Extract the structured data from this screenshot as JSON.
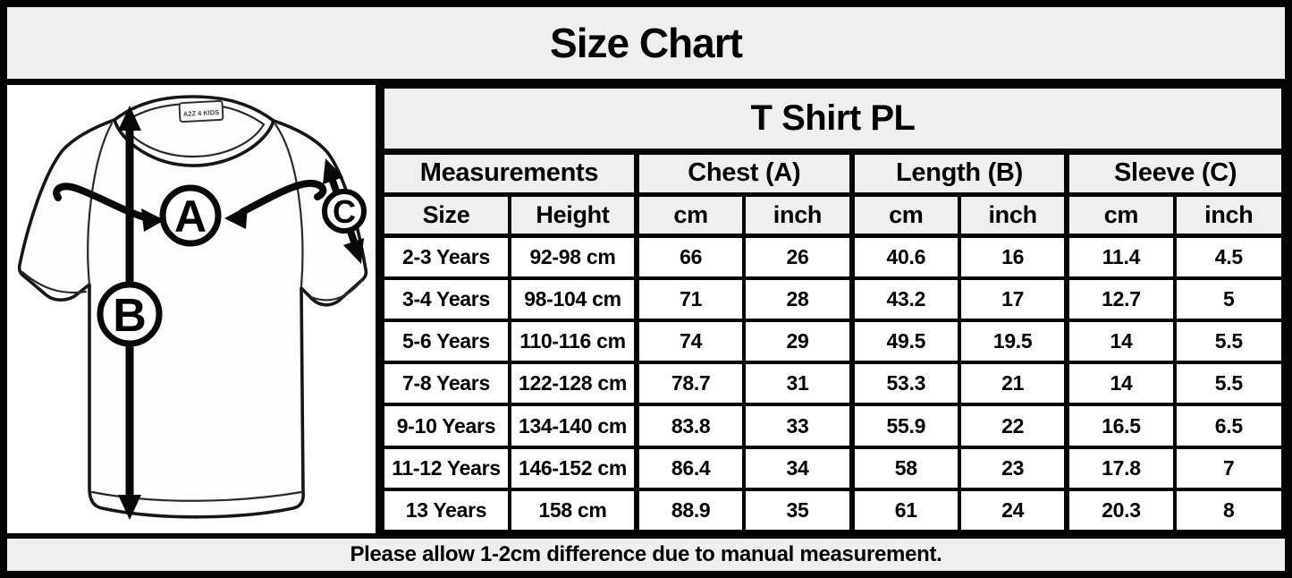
{
  "title": "Size Chart",
  "table": {
    "caption": "T Shirt PL",
    "groups": [
      "Measurements",
      "Chest (A)",
      "Length (B)",
      "Sleeve (C)"
    ],
    "subheaders": [
      "Size",
      "Height",
      "cm",
      "inch",
      "cm",
      "inch",
      "cm",
      "inch"
    ],
    "rows": [
      [
        "2-3 Years",
        "92-98 cm",
        "66",
        "26",
        "40.6",
        "16",
        "11.4",
        "4.5"
      ],
      [
        "3-4 Years",
        "98-104 cm",
        "71",
        "28",
        "43.2",
        "17",
        "12.7",
        "5"
      ],
      [
        "5-6 Years",
        "110-116 cm",
        "74",
        "29",
        "49.5",
        "19.5",
        "14",
        "5.5"
      ],
      [
        "7-8 Years",
        "122-128 cm",
        "78.7",
        "31",
        "53.3",
        "21",
        "14",
        "5.5"
      ],
      [
        "9-10 Years",
        "134-140 cm",
        "83.8",
        "33",
        "55.9",
        "22",
        "16.5",
        "6.5"
      ],
      [
        "11-12 Years",
        "146-152 cm",
        "86.4",
        "34",
        "58",
        "23",
        "17.8",
        "7"
      ],
      [
        "13 Years",
        "158 cm",
        "88.9",
        "35",
        "61",
        "24",
        "20.3",
        "8"
      ]
    ]
  },
  "diagram": {
    "measure_labels": {
      "chest": "A",
      "length": "B",
      "sleeve": "C"
    },
    "brand_label": "A2Z 4 KIDS"
  },
  "footer_note": "Please allow 1-2cm difference due to manual measurement.",
  "colors": {
    "band_bg": "#efefef",
    "cell_bg": "#ffffff",
    "border": "#050505",
    "text": "#000000"
  }
}
